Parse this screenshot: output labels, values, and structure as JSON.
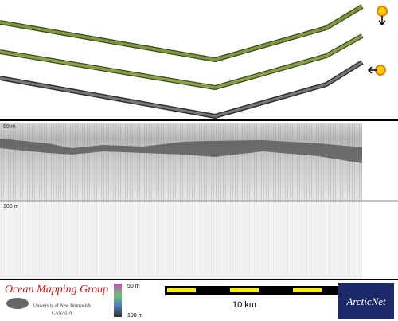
{
  "panels": {
    "depth_labels": [
      "50 m",
      "100 m"
    ]
  },
  "footer": {
    "logo_left": {
      "title": "Ocean Mapping Group",
      "line1": "University of New Brunswick",
      "line2": "CANADA"
    },
    "color_legend": [
      "50 m",
      "100 m"
    ],
    "scale_bar": "10 km",
    "logo_right": "ArcticNet"
  }
}
